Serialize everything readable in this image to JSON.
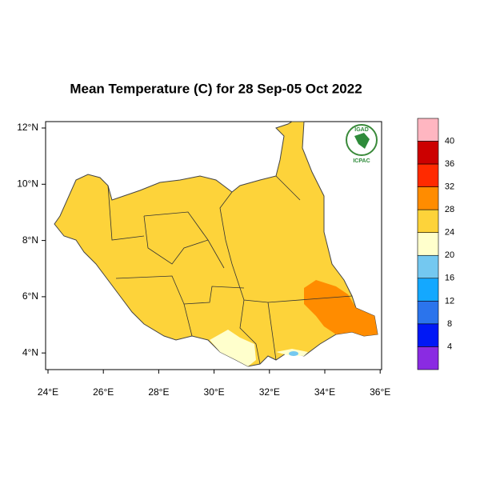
{
  "title": "Mean Temperature (C) for 28 Sep-05 Oct 2022",
  "map": {
    "x_ticks": [
      "24°E",
      "26°E",
      "28°E",
      "30°E",
      "32°E",
      "34°E",
      "36°E"
    ],
    "y_ticks": [
      "12°N",
      "10°N",
      "8°N",
      "6°N",
      "4°N"
    ]
  },
  "logo": {
    "top": "IGAD",
    "bottom": "ICPAC"
  },
  "legend": {
    "labels": [
      "40",
      "36",
      "32",
      "28",
      "24",
      "20",
      "16",
      "12",
      "8",
      "4"
    ],
    "colors": [
      "#ffb6c1",
      "#cc0000",
      "#ff2a00",
      "#ff8c00",
      "#fdd33a",
      "#ffffcc",
      "#74c8f0",
      "#14a8ff",
      "#2b74ec",
      "#0018f5",
      "#8a2be2"
    ]
  }
}
